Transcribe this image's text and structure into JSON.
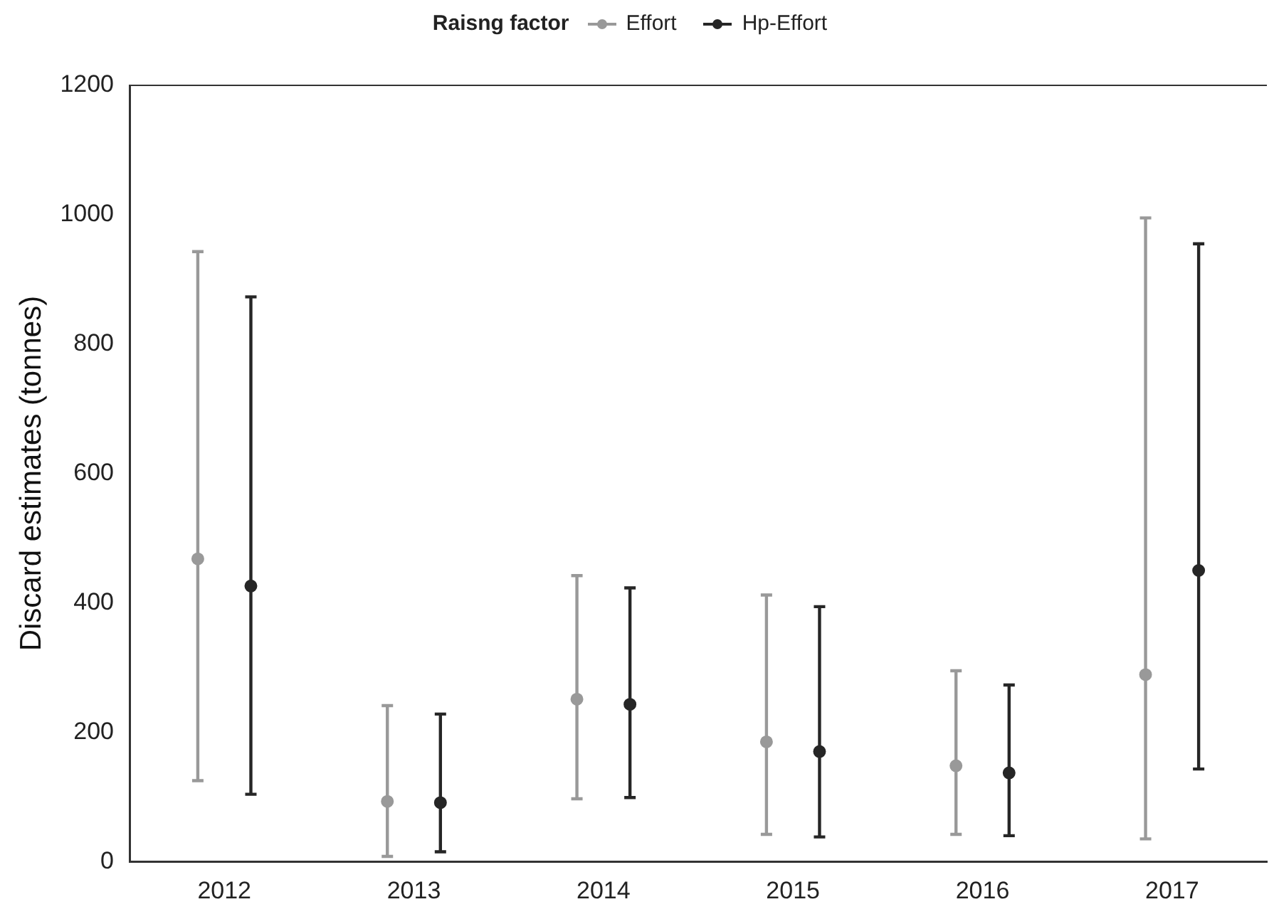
{
  "chart_data": {
    "type": "scatter",
    "ylabel": "Discard estimates (tonnes)",
    "legend_title": "Raisng factor",
    "legend": "top",
    "marker": "circle",
    "grid": false,
    "categories": [
      "2012",
      "2013",
      "2014",
      "2015",
      "2016",
      "2017"
    ],
    "ylim": [
      0,
      1200
    ],
    "yticks": [
      0,
      200,
      400,
      600,
      800,
      1000,
      1200
    ],
    "series": [
      {
        "name": "Effort",
        "color": "#999999",
        "values": [
          468,
          93,
          251,
          185,
          148,
          289
        ],
        "errors": [
          [
            125,
            943
          ],
          [
            8,
            241
          ],
          [
            97,
            442
          ],
          [
            42,
            412
          ],
          [
            42,
            295
          ],
          [
            35,
            995
          ]
        ]
      },
      {
        "name": "Hp-Effort",
        "color": "#262626",
        "values": [
          426,
          91,
          243,
          170,
          137,
          450
        ],
        "errors": [
          [
            104,
            873
          ],
          [
            15,
            228
          ],
          [
            99,
            423
          ],
          [
            38,
            394
          ],
          [
            40,
            273
          ],
          [
            143,
            955
          ]
        ]
      }
    ]
  }
}
